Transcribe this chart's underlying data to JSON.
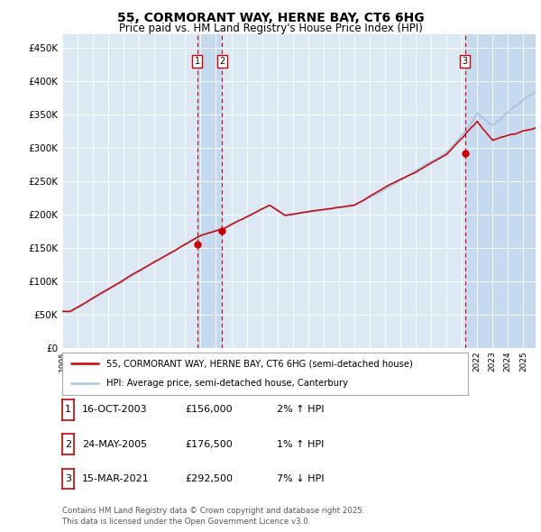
{
  "title": "55, CORMORANT WAY, HERNE BAY, CT6 6HG",
  "subtitle": "Price paid vs. HM Land Registry's House Price Index (HPI)",
  "yticks": [
    0,
    50000,
    100000,
    150000,
    200000,
    250000,
    300000,
    350000,
    400000,
    450000
  ],
  "ylim": [
    0,
    470000
  ],
  "xlim_start": 1995.0,
  "xlim_end": 2025.8,
  "sale_dates": [
    2003.79,
    2005.39,
    2021.21
  ],
  "sale_prices": [
    156000,
    176500,
    292500
  ],
  "sale_labels": [
    "1",
    "2",
    "3"
  ],
  "sale_info": [
    {
      "label": "1",
      "date": "16-OCT-2003",
      "price": "£156,000",
      "pct": "2%",
      "dir": "↑"
    },
    {
      "label": "2",
      "date": "24-MAY-2005",
      "price": "£176,500",
      "pct": "1%",
      "dir": "↑"
    },
    {
      "label": "3",
      "date": "15-MAR-2021",
      "price": "£292,500",
      "pct": "7%",
      "dir": "↓"
    }
  ],
  "legend_line1": "55, CORMORANT WAY, HERNE BAY, CT6 6HG (semi-detached house)",
  "legend_line2": "HPI: Average price, semi-detached house, Canterbury",
  "footer": "Contains HM Land Registry data © Crown copyright and database right 2025.\nThis data is licensed under the Open Government Licence v3.0.",
  "hpi_color": "#a8c4e0",
  "price_color": "#cc0000",
  "sale_vline_color": "#cc0000",
  "sale_box_color": "#cc0000",
  "background_color": "#ffffff",
  "plot_bg_color": "#dce9f5",
  "shade_color": "#c5d9ef"
}
